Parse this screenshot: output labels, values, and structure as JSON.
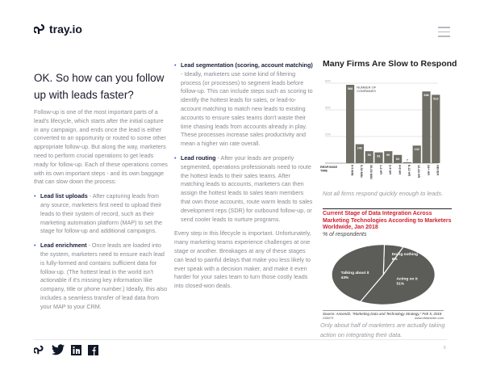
{
  "header": {
    "logo_text": "tray.io",
    "menu_icon": "hamburger-icon"
  },
  "title": "OK. So how can you follow up with leads faster?",
  "intro": "Follow-up is one of the most important parts of a lead's lifecycle, which starts after the initial capture in any campaign, and ends once the lead is either converted to an opportunity or routed to some other appropriate follow-up. But along the way, marketers need to perform crucial operations to get leads ready for follow-up. Each of these operations comes with its own important steps - and its own baggage that can slow down the process:",
  "bullets": [
    {
      "label": "Lead list uploads",
      "text": " - After capturing leads from any source, marketers first need to upload their leads to their system of record, such as their marketing automation platform (MAP) to set the stage for follow-up and additional campaigns."
    },
    {
      "label": "Lead enrichment",
      "text": " - Once leads are loaded into the system, marketers need to ensure each lead is fully-formed and contains sufficient data for follow-up. (The hottest lead in the world isn't actionable if it's missing key information like company, title or phone number.) Ideally, this also includes a seamless transfer of lead data from your MAP to your CRM."
    },
    {
      "label": "Lead segmentation (scoring, account matching)",
      "text": " - Ideally, marketers use some kind of filtering process (or processes) to segment leads before follow-up. This can include steps such as scoring to identify the hottest leads for sales, or lead-to-account matching to match new leads to existing accounts to ensure sales teams don't waste their time chasing leads from accounts already in play. These processes increase sales productivity and mean a higher win rate overall."
    },
    {
      "label": "Lead routing",
      "text": " - After your leads are properly segmented, operations professionals need to route the hottest leads to their sales teams. After matching leads to accounts, marketers can then assign the hottest leads to sales team members that own those accounts, route warm leads to sales development reps (SDR) for outbound follow-up, or send cooler leads to nurture programs."
    }
  ],
  "closing": "Every step in this lifecycle is important. Unfortunately, many marketing teams experience challenges at one stage or another. Breakages at any of these stages can lead to painful delays that make you less likely to ever speak with a decision maker, and make it even harder for your sales team to turn those costly leads into closed-won deals.",
  "chart_data": [
    {
      "type": "bar",
      "title": "Many Firms Are Slow to Respond",
      "legend": "NUMBER OF COMPANIES",
      "xlabel": "RESPONSE TIME",
      "categories": [
        "0-5 MIN",
        "5-30 MIN",
        "30-60 MIN",
        "1-2 HR",
        "2-4 HR",
        "4-8 HR",
        "8-12 HR",
        "12-24 HR",
        "24+ HR",
        "NEVER"
      ],
      "values": [
        588,
        142,
        90,
        81,
        90,
        62,
        7,
        132,
        538,
        513
      ],
      "ylim": [
        0,
        600
      ],
      "yticks": [
        200,
        400,
        600
      ],
      "grid": true,
      "color": "#6f6f66",
      "caption": "Not all firms respond quickly enough to leads."
    },
    {
      "type": "pie",
      "title": "Current Stage of Data Integration Across Marketing Technologies According to Marketers Worldwide, Jan 2018",
      "subtitle": "% of respondents",
      "slices": [
        {
          "label": "Doing nothing",
          "value": 6
        },
        {
          "label": "Acting on it",
          "value": 51
        },
        {
          "label": "Talking about it",
          "value": 43
        }
      ],
      "source": "Source: Ascend2, \"Marketing Data and Technology Strategy,\" Feb 5, 2018",
      "code": "235079",
      "site": "www.eMarketer.com",
      "color": "#5c5c58",
      "title_color": "#d01f2f",
      "caption": "Only about half of marketers are actually taking action on integrating their data."
    }
  ],
  "footer": {
    "icons": [
      "tray-icon",
      "twitter-icon",
      "linkedin-icon",
      "facebook-icon"
    ],
    "page": "6"
  }
}
